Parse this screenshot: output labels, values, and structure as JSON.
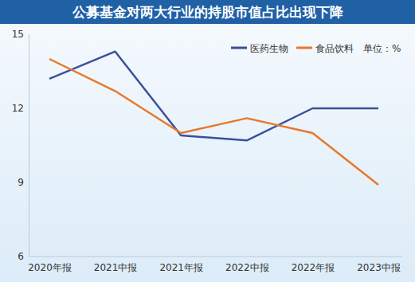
{
  "chart_data": {
    "type": "line",
    "title": "公募基金对两大行业的持股市值占比出现下降",
    "y_label": "单位：%",
    "categories": [
      "2020年报",
      "2021中报",
      "2021年报",
      "2022中报",
      "2022年报",
      "2023中报"
    ],
    "series": [
      {
        "name": "医药生物",
        "color": "#3b4f9c",
        "values": [
          13.2,
          14.3,
          10.9,
          10.7,
          12.0,
          12.0
        ]
      },
      {
        "name": "食品饮料",
        "color": "#e8782c",
        "values": [
          14.0,
          12.7,
          11.0,
          11.6,
          11.0,
          8.9
        ]
      }
    ],
    "ylim": [
      6,
      15
    ],
    "yticks": [
      6,
      9,
      12,
      15
    ],
    "grid": false,
    "legend": "upper right"
  }
}
